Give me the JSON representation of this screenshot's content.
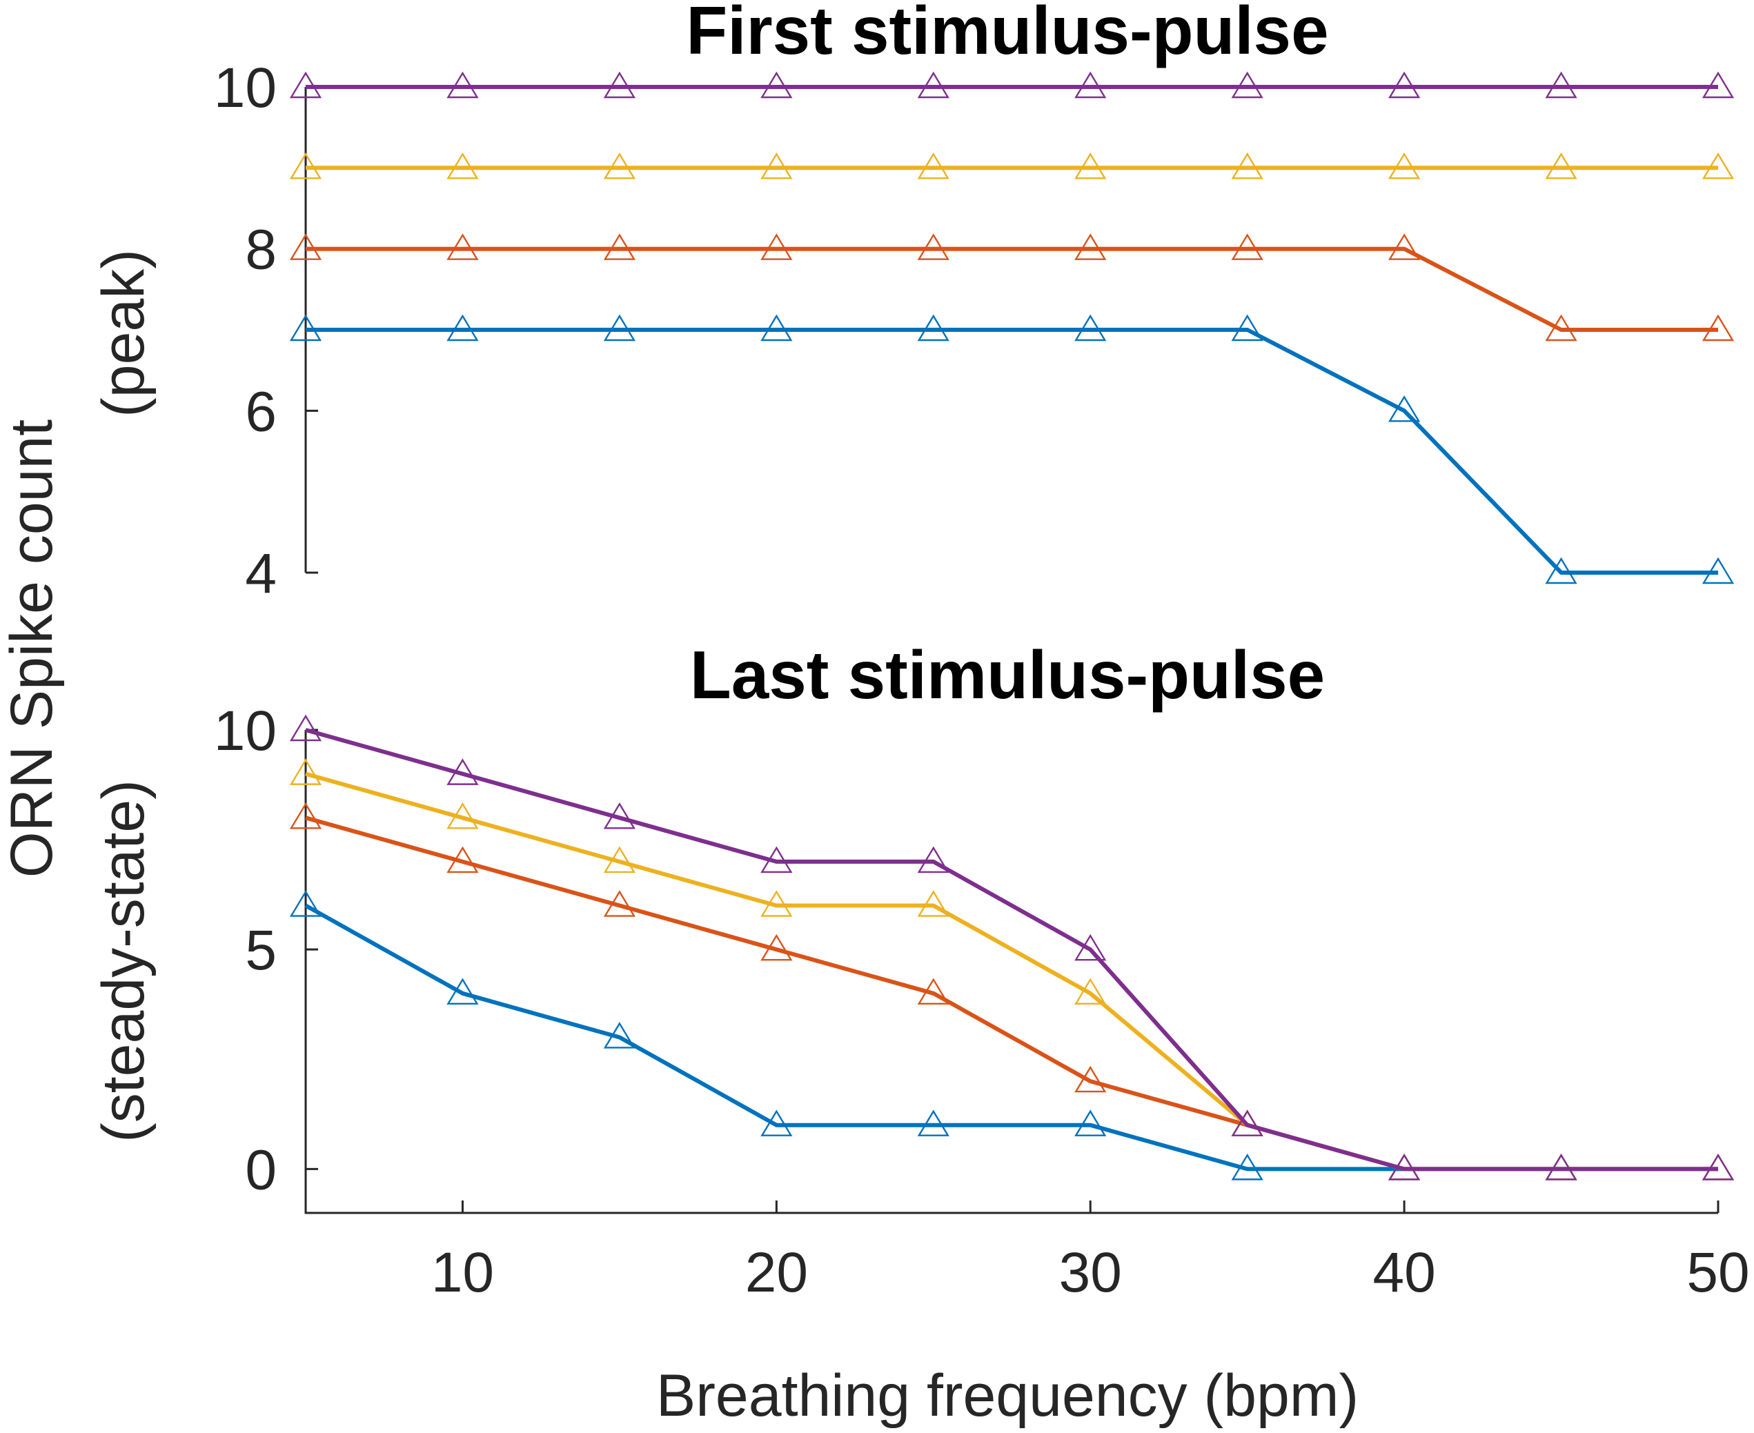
{
  "figure": {
    "ylabel_line1": "ORN Spike count",
    "ylabel_line2_top": "(peak)",
    "ylabel_line2_bottom": "(steady-state)",
    "xlabel": "Breathing frequency (bpm)"
  },
  "chart_data": [
    {
      "type": "line",
      "title": "First stimulus-pulse",
      "xlabel": "",
      "ylabel": "(peak)",
      "xlim": [
        5,
        50
      ],
      "ylim": [
        4,
        10
      ],
      "yticks": [
        4,
        6,
        8,
        10
      ],
      "x": [
        5,
        10,
        15,
        20,
        25,
        30,
        35,
        40,
        45,
        50
      ],
      "marker": "triangle",
      "grid": false,
      "series": [
        {
          "color": "#0072BD",
          "values": [
            7,
            7,
            7,
            7,
            7,
            7,
            7,
            6,
            4,
            4
          ]
        },
        {
          "color": "#D95319",
          "values": [
            8,
            8,
            8,
            8,
            8,
            8,
            8,
            8,
            7,
            7
          ]
        },
        {
          "color": "#EDB120",
          "values": [
            9,
            9,
            9,
            9,
            9,
            9,
            9,
            9,
            9,
            9
          ]
        },
        {
          "color": "#7E2F8E",
          "values": [
            10,
            10,
            10,
            10,
            10,
            10,
            10,
            10,
            10,
            10
          ]
        }
      ]
    },
    {
      "type": "line",
      "title": "Last stimulus-pulse",
      "xlabel": "Breathing frequency (bpm)",
      "ylabel": "(steady-state)",
      "xlim": [
        5,
        50
      ],
      "ylim": [
        -1,
        10
      ],
      "yticks": [
        0,
        5,
        10
      ],
      "xticks": [
        10,
        20,
        30,
        40,
        50
      ],
      "x": [
        5,
        10,
        15,
        20,
        25,
        30,
        35,
        40,
        45,
        50
      ],
      "marker": "triangle",
      "grid": false,
      "series": [
        {
          "color": "#0072BD",
          "values": [
            6,
            4,
            3,
            1,
            1,
            1,
            0,
            0,
            0,
            0
          ]
        },
        {
          "color": "#D95319",
          "values": [
            8,
            7,
            6,
            5,
            4,
            2,
            1,
            0,
            0,
            0
          ]
        },
        {
          "color": "#EDB120",
          "values": [
            9,
            8,
            7,
            6,
            6,
            4,
            1,
            0,
            0,
            0
          ]
        },
        {
          "color": "#7E2F8E",
          "values": [
            10,
            9,
            8,
            7,
            7,
            5,
            1,
            0,
            0,
            0
          ]
        }
      ]
    }
  ]
}
